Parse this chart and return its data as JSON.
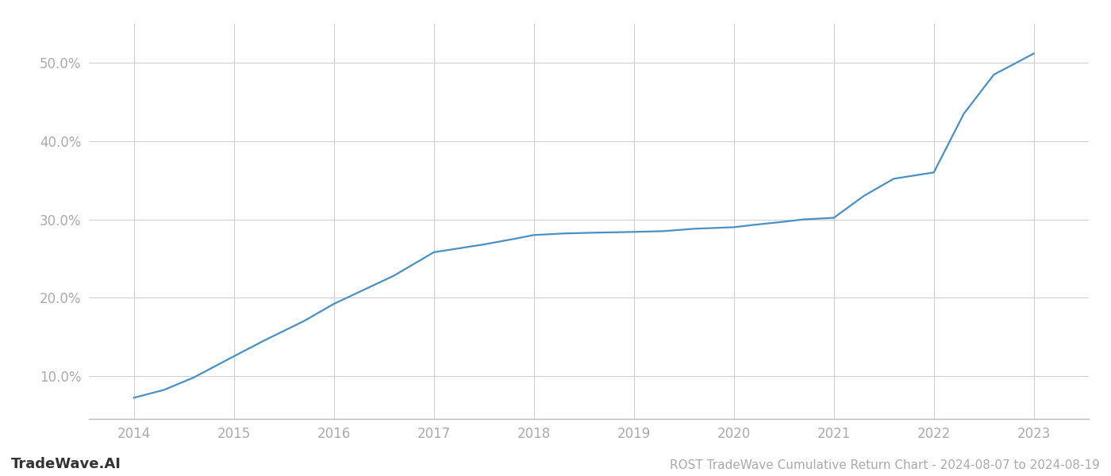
{
  "title": "ROST TradeWave Cumulative Return Chart - 2024-08-07 to 2024-08-19",
  "watermark": "TradeWave.AI",
  "line_color": "#4a90c4",
  "background_color": "#ffffff",
  "grid_color": "#cccccc",
  "x_values": [
    2014.0,
    2014.3,
    2014.6,
    2015.0,
    2015.3,
    2015.7,
    2016.0,
    2016.3,
    2016.6,
    2017.0,
    2017.2,
    2017.5,
    2017.8,
    2018.0,
    2018.3,
    2018.6,
    2019.0,
    2019.3,
    2019.6,
    2020.0,
    2020.2,
    2020.5,
    2020.7,
    2021.0,
    2021.3,
    2021.6,
    2022.0,
    2022.3,
    2022.6,
    2023.0
  ],
  "y_values": [
    7.2,
    8.2,
    9.8,
    12.5,
    14.5,
    17.0,
    19.2,
    21.0,
    22.8,
    25.8,
    26.2,
    26.8,
    27.5,
    28.0,
    28.2,
    28.3,
    28.4,
    28.5,
    28.8,
    29.0,
    29.3,
    29.7,
    30.0,
    30.2,
    33.0,
    35.2,
    36.0,
    43.5,
    48.5,
    51.2
  ],
  "xlim": [
    2013.55,
    2023.55
  ],
  "ylim": [
    4.5,
    55
  ],
  "yticks": [
    10,
    20,
    30,
    40,
    50
  ],
  "xticks": [
    2014,
    2015,
    2016,
    2017,
    2018,
    2019,
    2020,
    2021,
    2022,
    2023
  ],
  "tick_label_color": "#aaaaaa",
  "axis_color": "#bbbbbb",
  "line_width": 1.6,
  "title_fontsize": 11,
  "tick_fontsize": 12,
  "watermark_fontsize": 13
}
